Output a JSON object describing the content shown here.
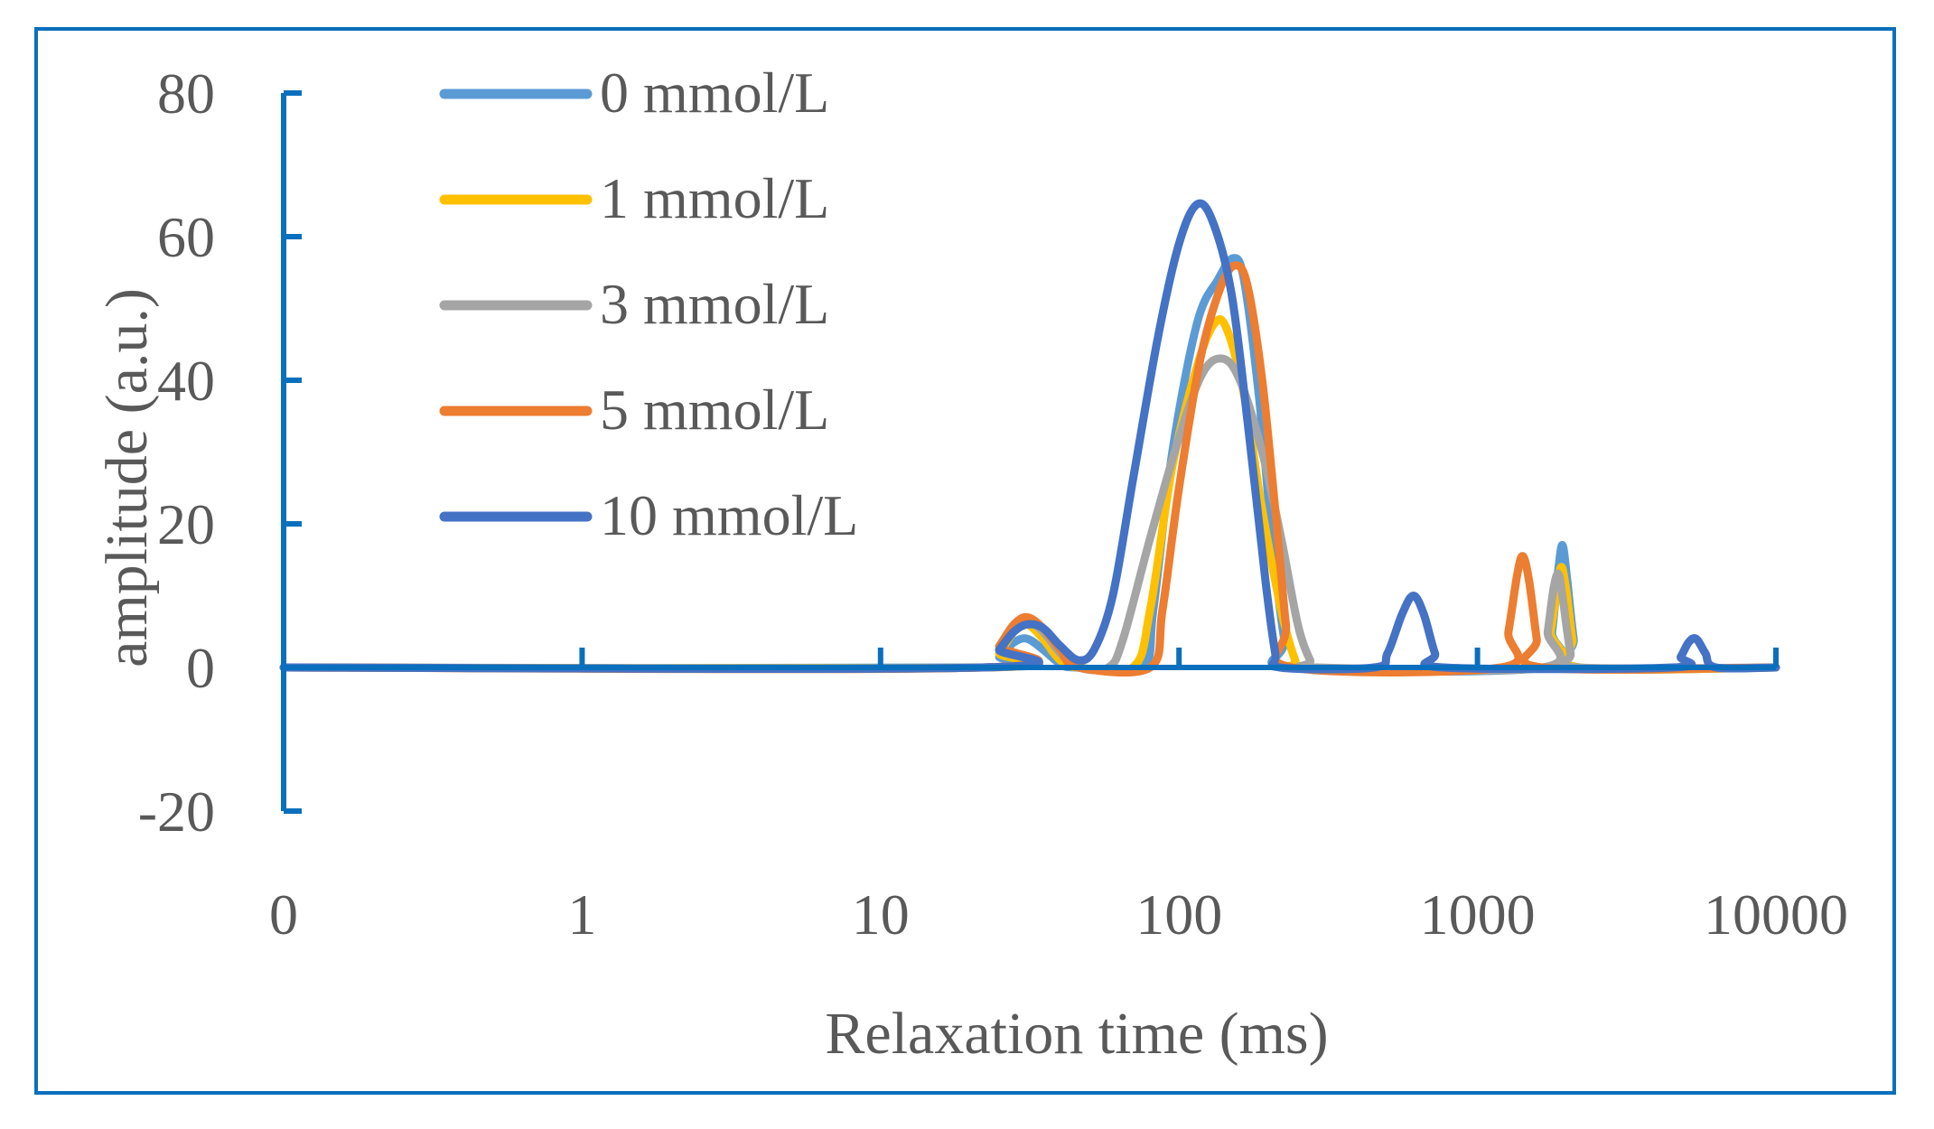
{
  "chart_data": {
    "type": "line",
    "title": "",
    "xlabel": "Relaxation time (ms)",
    "ylabel": "amplitude (a.u.)",
    "x_scale": "log",
    "x_tick_labels": [
      "0",
      "1",
      "10",
      "100",
      "1000",
      "10000"
    ],
    "y_tick_labels": [
      "80",
      "60",
      "40",
      "20",
      "0",
      "-20"
    ],
    "ylim": [
      -20,
      80
    ],
    "xlim_ms": [
      0.1,
      10000
    ],
    "legend_position": "top-left",
    "series": [
      {
        "name": "0 mmol/L",
        "color": "#5b9bd5",
        "stroke_width": 9,
        "points": [
          [
            0.1,
            0
          ],
          [
            22,
            0
          ],
          [
            25,
            1.5
          ],
          [
            28,
            3.5
          ],
          [
            31,
            4
          ],
          [
            35,
            2.5
          ],
          [
            40,
            0.5
          ],
          [
            45,
            0
          ],
          [
            75,
            0
          ],
          [
            82,
            8
          ],
          [
            95,
            30
          ],
          [
            115,
            48
          ],
          [
            135,
            54
          ],
          [
            152,
            57
          ],
          [
            165,
            54
          ],
          [
            185,
            38
          ],
          [
            205,
            18
          ],
          [
            225,
            4
          ],
          [
            240,
            0
          ],
          [
            1700,
            0
          ],
          [
            1780,
            5
          ],
          [
            1870,
            14
          ],
          [
            1930,
            17
          ],
          [
            2000,
            12
          ],
          [
            2100,
            4
          ],
          [
            2200,
            0
          ],
          [
            10000,
            0
          ]
        ]
      },
      {
        "name": "1 mmol/L",
        "color": "#ffc000",
        "stroke_width": 9,
        "points": [
          [
            0.1,
            0
          ],
          [
            22,
            0
          ],
          [
            25,
            2
          ],
          [
            28,
            5
          ],
          [
            31,
            6
          ],
          [
            35,
            4
          ],
          [
            40,
            1
          ],
          [
            46,
            0
          ],
          [
            70,
            0
          ],
          [
            80,
            8
          ],
          [
            95,
            28
          ],
          [
            115,
            42
          ],
          [
            132,
            48
          ],
          [
            145,
            47
          ],
          [
            165,
            38
          ],
          [
            190,
            22
          ],
          [
            220,
            8
          ],
          [
            245,
            1
          ],
          [
            260,
            0
          ],
          [
            1680,
            0
          ],
          [
            1760,
            5
          ],
          [
            1850,
            11
          ],
          [
            1910,
            14
          ],
          [
            1980,
            11
          ],
          [
            2080,
            4
          ],
          [
            2200,
            0
          ],
          [
            10000,
            0
          ]
        ]
      },
      {
        "name": "3 mmol/L",
        "color": "#a5a5a5",
        "stroke_width": 9,
        "points": [
          [
            0.1,
            0
          ],
          [
            22,
            0
          ],
          [
            25,
            2.5
          ],
          [
            28,
            5.5
          ],
          [
            31,
            6.5
          ],
          [
            35,
            5
          ],
          [
            40,
            2
          ],
          [
            46,
            0
          ],
          [
            58,
            0
          ],
          [
            65,
            4
          ],
          [
            80,
            18
          ],
          [
            100,
            32
          ],
          [
            120,
            41
          ],
          [
            140,
            43
          ],
          [
            160,
            40
          ],
          [
            190,
            30
          ],
          [
            220,
            18
          ],
          [
            250,
            6
          ],
          [
            275,
            1
          ],
          [
            290,
            0
          ],
          [
            1650,
            0
          ],
          [
            1720,
            5
          ],
          [
            1800,
            11
          ],
          [
            1870,
            13
          ],
          [
            1940,
            9
          ],
          [
            2050,
            2
          ],
          [
            2150,
            0
          ],
          [
            10000,
            0
          ]
        ]
      },
      {
        "name": "5 mmol/L",
        "color": "#ed7d31",
        "stroke_width": 9,
        "points": [
          [
            0.1,
            0
          ],
          [
            22,
            0
          ],
          [
            25,
            3
          ],
          [
            28,
            6
          ],
          [
            31,
            7
          ],
          [
            35,
            5.5
          ],
          [
            40,
            2.5
          ],
          [
            46,
            0
          ],
          [
            80,
            0
          ],
          [
            88,
            8
          ],
          [
            100,
            25
          ],
          [
            118,
            43
          ],
          [
            138,
            53
          ],
          [
            155,
            56
          ],
          [
            170,
            53
          ],
          [
            190,
            40
          ],
          [
            210,
            22
          ],
          [
            228,
            6
          ],
          [
            240,
            0
          ],
          [
            1200,
            0
          ],
          [
            1270,
            5
          ],
          [
            1360,
            13
          ],
          [
            1420,
            15.5
          ],
          [
            1490,
            12
          ],
          [
            1580,
            4
          ],
          [
            1650,
            0
          ],
          [
            10000,
            0
          ]
        ]
      },
      {
        "name": "10 mmol/L",
        "color": "#4472c4",
        "stroke_width": 9,
        "points": [
          [
            0.1,
            0
          ],
          [
            22,
            0
          ],
          [
            25,
            2.5
          ],
          [
            28,
            5
          ],
          [
            31,
            6
          ],
          [
            35,
            5.5
          ],
          [
            40,
            3
          ],
          [
            46,
            1
          ],
          [
            52,
            2.5
          ],
          [
            60,
            10
          ],
          [
            70,
            26
          ],
          [
            85,
            46
          ],
          [
            100,
            59
          ],
          [
            115,
            64.5
          ],
          [
            130,
            62
          ],
          [
            150,
            52
          ],
          [
            170,
            34
          ],
          [
            195,
            12
          ],
          [
            210,
            2
          ],
          [
            218,
            0
          ],
          [
            450,
            0
          ],
          [
            500,
            2
          ],
          [
            560,
            7.5
          ],
          [
            610,
            10
          ],
          [
            660,
            7.5
          ],
          [
            720,
            2
          ],
          [
            770,
            0
          ],
          [
            4500,
            0
          ],
          [
            4800,
            1.5
          ],
          [
            5100,
            3.5
          ],
          [
            5400,
            4
          ],
          [
            5800,
            2
          ],
          [
            6300,
            0
          ],
          [
            10000,
            0
          ]
        ]
      }
    ]
  }
}
